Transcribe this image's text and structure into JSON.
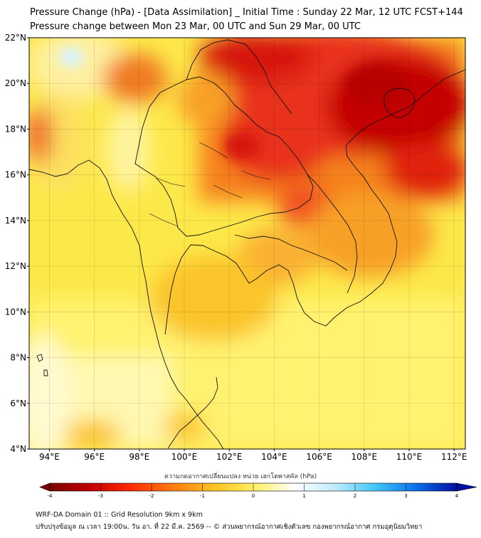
{
  "header": {
    "title": "Pressure Change (hPa) - [Data Assimilation] _ Initial Time : Sunday 22 Mar, 12 UTC FCST+144",
    "subtitle": "Pressure change between Mon 23 Mar, 00 UTC and Sun 29 Mar, 00 UTC"
  },
  "map": {
    "lat_labels": [
      "22°N",
      "20°N",
      "18°N",
      "16°N",
      "14°N",
      "12°N",
      "10°N",
      "8°N",
      "6°N",
      "4°N"
    ],
    "lon_labels": [
      "94°E",
      "96°E",
      "98°E",
      "100°E",
      "102°E",
      "104°E",
      "106°E",
      "108°E",
      "110°E",
      "112°E"
    ],
    "lat_range": [
      4,
      22
    ],
    "lon_range": [
      93.1,
      112.5
    ],
    "gridlines": true,
    "field_colors": {
      "strong_drop": "#c40000",
      "moderate_drop": "#e8301a",
      "mild_drop": "#f6821e",
      "slight_drop": "#fbc42a",
      "small_drop": "#fde84a",
      "near_zero": "#fff8b0",
      "rise": "#d8f4ff"
    }
  },
  "colorbar": {
    "title": "ความกดอากาศเปลี่ยนแปลง หน่วย เฮกโตพาสคัล (hPa)",
    "ticks": [
      "-4",
      "-3",
      "-2",
      "-1",
      "0",
      "1",
      "2",
      "3",
      "4"
    ],
    "range": [
      -4,
      4
    ],
    "colors": [
      "#7a0000",
      "#c40000",
      "#ff2a00",
      "#ff7a10",
      "#ffc020",
      "#fff060",
      "#ffffff",
      "#c0ecff",
      "#40c8f8",
      "#0a70e8",
      "#0010a0"
    ]
  },
  "footer": {
    "line1": "WRF-DA Domain 01 :: Grid Resolution 9km x 9km",
    "line2": "ปรับปรุงข้อมูล ณ เวลา 19:00น. วัน อา. ที่ 22 มี.ค. 2569 -- © ส่วนพยากรณ์อากาศเชิงตัวเลข กองพยากรณ์อากาศ กรมอุตุนิยมวิทยา"
  }
}
